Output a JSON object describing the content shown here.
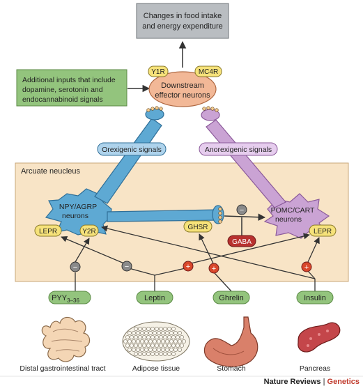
{
  "top_box": {
    "line1": "Changes in food intake",
    "line2": "and energy expenditure"
  },
  "additional_inputs": {
    "line1": "Additional inputs that include",
    "line2": "dopamine, serotonin and",
    "line3": "endocannabinoid signals"
  },
  "downstream": {
    "line1": "Downstream",
    "line2": "effector neurons",
    "y1r": "Y1R",
    "mc4r": "MC4R"
  },
  "signals": {
    "orexigenic": "Orexigenic signals",
    "anorexigenic": "Anorexigenic signals"
  },
  "arcuate": {
    "label": "Arcuate neucleus"
  },
  "npy": {
    "line1": "NPY/AGRP",
    "line2": "neurons",
    "lepr": "LEPR",
    "y2r": "Y2R"
  },
  "pomc": {
    "line1": "POMC/CART",
    "line2": "neurons",
    "lepr": "LEPR"
  },
  "ghsr": "GHSR",
  "gaba": "GABA",
  "signs": {
    "minus": "−",
    "plus": "+"
  },
  "hormones": {
    "pyy_main": "PYY",
    "pyy_sub": "3–36",
    "leptin": "Leptin",
    "ghrelin": "Ghrelin",
    "insulin": "Insulin"
  },
  "organs": {
    "gi": "Distal gastrointestinal tract",
    "adipose": "Adipose tissue",
    "stomach": "Stomach",
    "pancreas": "Pancreas"
  },
  "credit": {
    "journal": "Nature Reviews",
    "separator": " | ",
    "section": "Genetics"
  },
  "colors": {
    "top_box_fill": "#b9bdc1",
    "green_fill": "#93c47d",
    "effector_fill": "#f2b897",
    "receptor_fill": "#f6e27a",
    "blue_neuron": "#5ea9d3",
    "purple_neuron": "#caa3d4",
    "arcuate_fill": "#f8e4c6",
    "minus_fill": "#8a8a8a",
    "plus_fill": "#d9472b",
    "gaba_fill": "#b8312f",
    "credit_red": "#c0392b"
  }
}
